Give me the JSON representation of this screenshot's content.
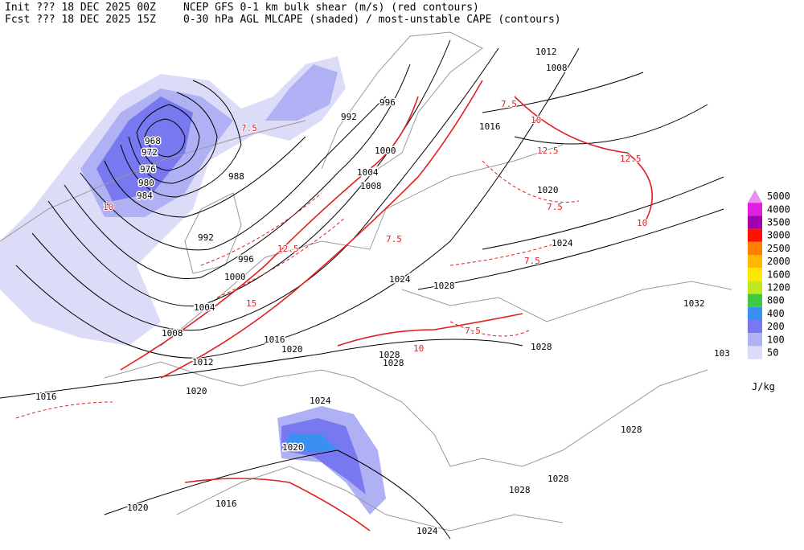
{
  "header": {
    "init": "Init  ??? 18 DEC 2025 00Z",
    "fcst": "Fcst ??? 18 DEC 2025 15Z",
    "title1": "NCEP GFS 0-1 km bulk shear (m/s) (red contours)",
    "title2": "0-30 hPa AGL MLCAPE (shaded) / most-unstable CAPE (contours)"
  },
  "legend": {
    "unit": "J/kg",
    "levels": [
      {
        "value": 5000,
        "color": "#e890f0"
      },
      {
        "value": 4000,
        "color": "#e020e0"
      },
      {
        "value": 3500,
        "color": "#a000b0"
      },
      {
        "value": 3000,
        "color": "#ff1000"
      },
      {
        "value": 2500,
        "color": "#ff8000"
      },
      {
        "value": 2000,
        "color": "#ffb800"
      },
      {
        "value": 1600,
        "color": "#ffe800"
      },
      {
        "value": 1200,
        "color": "#c0e820"
      },
      {
        "value": 800,
        "color": "#40c840"
      },
      {
        "value": 400,
        "color": "#3a90f0"
      },
      {
        "value": 200,
        "color": "#7878f0"
      },
      {
        "value": 100,
        "color": "#b0b0f4"
      },
      {
        "value": 50,
        "color": "#dcdcf8"
      }
    ]
  },
  "isobar_labels": [
    1012,
    1008,
    996,
    992,
    1016,
    1000,
    968,
    972,
    1004,
    976,
    980,
    1008,
    984,
    988,
    1020,
    992,
    1024,
    996,
    1000,
    1024,
    1028,
    1004,
    1032,
    1008,
    1016,
    1020,
    1028,
    1028,
    1028,
    1012,
    1020,
    1016,
    1024,
    1028,
    1020,
    1028,
    1028,
    1016,
    1020,
    1024,
    "103"
  ],
  "shear_labels": [
    7.5,
    7.5,
    10,
    12.5,
    12.5,
    7.5,
    10,
    7.5,
    7.5,
    12.5,
    10,
    7.5,
    10,
    15
  ]
}
